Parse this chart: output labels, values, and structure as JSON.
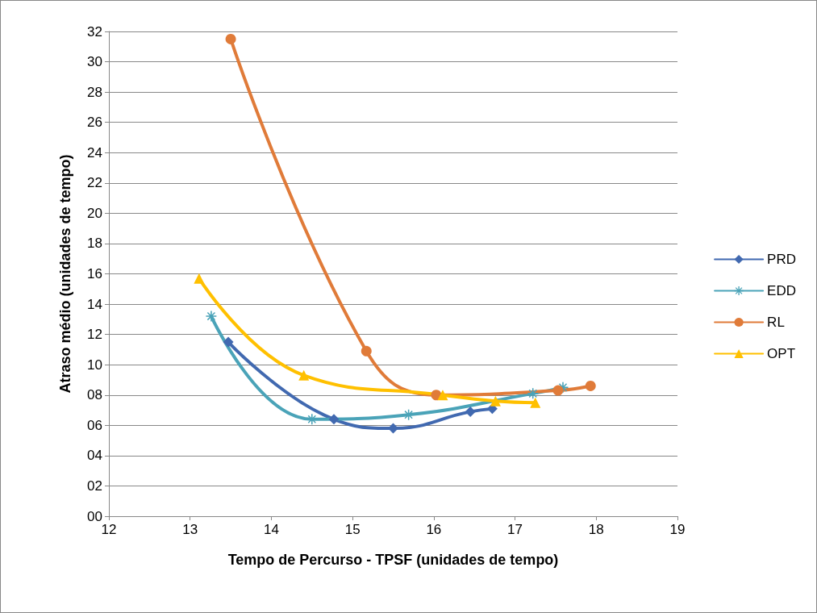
{
  "chart_data": {
    "type": "line",
    "xlabel": "Tempo de Percurso - TPSF (unidades de tempo)",
    "ylabel": "Atraso médio (unidades de tempo)",
    "xlim": [
      12,
      19
    ],
    "xticks": [
      12,
      13,
      14,
      15,
      16,
      17,
      18,
      19
    ],
    "ylim": [
      0,
      32
    ],
    "yticks": [
      {
        "value": 0,
        "label": "00"
      },
      {
        "value": 2,
        "label": "02"
      },
      {
        "value": 4,
        "label": "04"
      },
      {
        "value": 6,
        "label": "06"
      },
      {
        "value": 8,
        "label": "08"
      },
      10,
      12,
      14,
      16,
      18,
      20,
      22,
      24,
      26,
      28,
      30,
      32
    ],
    "grid": "y",
    "legend": "right",
    "series": [
      {
        "name": "PRD",
        "color": "#4169b0",
        "marker": "diamond",
        "x": [
          13.47,
          14.77,
          15.5,
          16.45,
          16.72
        ],
        "values": [
          11.5,
          6.4,
          5.8,
          6.9,
          7.1
        ]
      },
      {
        "name": "EDD",
        "color": "#4aa3b8",
        "marker": "cross",
        "x": [
          13.26,
          14.5,
          15.69,
          17.22,
          17.59
        ],
        "values": [
          13.2,
          6.4,
          6.7,
          8.1,
          8.5
        ]
      },
      {
        "name": "RL",
        "color": "#e07b39",
        "marker": "circle",
        "x": [
          13.5,
          15.17,
          16.03,
          17.53,
          17.93
        ],
        "values": [
          31.5,
          10.9,
          8.0,
          8.3,
          8.6
        ]
      },
      {
        "name": "OPT",
        "color": "#ffc000",
        "marker": "triangle",
        "x": [
          13.11,
          14.4,
          16.11,
          16.76,
          17.25
        ],
        "values": [
          15.7,
          9.3,
          8.0,
          7.6,
          7.5
        ]
      }
    ]
  }
}
